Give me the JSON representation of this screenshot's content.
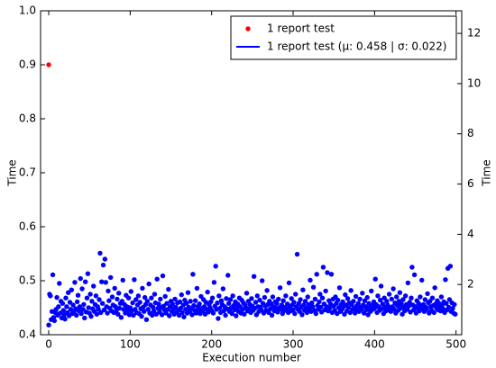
{
  "chart_data": {
    "type": "scatter",
    "xlabel": "Execution number",
    "ylabel": "Time",
    "y2label": "Time",
    "xlim": [
      -10,
      507
    ],
    "xticks": [
      0,
      100,
      200,
      300,
      400,
      500
    ],
    "ylim": [
      0.4,
      1.0
    ],
    "yticks": [
      0.4,
      0.5,
      0.6,
      0.7,
      0.8,
      0.9,
      {
        "value": 1.0,
        "label": "1.0"
      }
    ],
    "y2lim": [
      0,
      12.9
    ],
    "y2ticks": [
      2,
      4,
      6,
      8,
      10,
      12
    ],
    "legend": "upper right",
    "series": [
      {
        "name": "1 report test",
        "color": "#ff0000",
        "legend_marker": "dot",
        "values": [
          0.9
        ]
      },
      {
        "name": "1 report test (μ: 0.458 | σ: 0.022)",
        "color": "#0000ff",
        "legend_marker": "line",
        "values": [
          0.418,
          0.475,
          0.472,
          0.428,
          0.443,
          0.511,
          0.432,
          0.426,
          0.441,
          0.447,
          0.469,
          0.436,
          0.452,
          0.495,
          0.44,
          0.462,
          0.431,
          0.458,
          0.445,
          0.437,
          0.429,
          0.468,
          0.452,
          0.441,
          0.478,
          0.435,
          0.46,
          0.447,
          0.483,
          0.439,
          0.455,
          0.442,
          0.497,
          0.448,
          0.436,
          0.461,
          0.473,
          0.444,
          0.452,
          0.504,
          0.439,
          0.485,
          0.447,
          0.456,
          0.431,
          0.498,
          0.442,
          0.468,
          0.513,
          0.45,
          0.44,
          0.475,
          0.434,
          0.462,
          0.448,
          0.49,
          0.443,
          0.456,
          0.472,
          0.438,
          0.452,
          0.447,
          0.465,
          0.551,
          0.441,
          0.498,
          0.458,
          0.529,
          0.446,
          0.54,
          0.497,
          0.452,
          0.44,
          0.481,
          0.463,
          0.449,
          0.506,
          0.444,
          0.47,
          0.455,
          0.441,
          0.486,
          0.452,
          0.445,
          0.466,
          0.438,
          0.477,
          0.449,
          0.458,
          0.432,
          0.462,
          0.501,
          0.447,
          0.456,
          0.44,
          0.473,
          0.452,
          0.445,
          0.468,
          0.437,
          0.45,
          0.48,
          0.444,
          0.459,
          0.436,
          0.502,
          0.447,
          0.465,
          0.441,
          0.455,
          0.472,
          0.439,
          0.46,
          0.448,
          0.434,
          0.486,
          0.451,
          0.443,
          0.469,
          0.456,
          0.428,
          0.462,
          0.447,
          0.494,
          0.44,
          0.455,
          0.468,
          0.436,
          0.451,
          0.444,
          0.475,
          0.459,
          0.438,
          0.503,
          0.449,
          0.457,
          0.442,
          0.466,
          0.45,
          0.437,
          0.509,
          0.453,
          0.446,
          0.471,
          0.44,
          0.458,
          0.447,
          0.484,
          0.435,
          0.452,
          0.462,
          0.443,
          0.457,
          0.448,
          0.438,
          0.466,
          0.451,
          0.442,
          0.459,
          0.445,
          0.436,
          0.461,
          0.449,
          0.474,
          0.441,
          0.455,
          0.433,
          0.464,
          0.447,
          0.458,
          0.44,
          0.478,
          0.451,
          0.443,
          0.462,
          0.448,
          0.437,
          0.512,
          0.454,
          0.445,
          0.463,
          0.44,
          0.486,
          0.452,
          0.446,
          0.457,
          0.439,
          0.471,
          0.449,
          0.444,
          0.465,
          0.452,
          0.438,
          0.46,
          0.447,
          0.479,
          0.442,
          0.456,
          0.45,
          0.461,
          0.445,
          0.468,
          0.44,
          0.497,
          0.453,
          0.527,
          0.447,
          0.459,
          0.43,
          0.472,
          0.449,
          0.441,
          0.463,
          0.456,
          0.485,
          0.444,
          0.452,
          0.436,
          0.467,
          0.448,
          0.51,
          0.458,
          0.443,
          0.465,
          0.45,
          0.439,
          0.472,
          0.454,
          0.446,
          0.461,
          0.435,
          0.449,
          0.457,
          0.443,
          0.468,
          0.452,
          0.44,
          0.464,
          0.447,
          0.459,
          0.438,
          0.455,
          0.45,
          0.477,
          0.444,
          0.462,
          0.448,
          0.456,
          0.441,
          0.467,
          0.453,
          0.445,
          0.508,
          0.449,
          0.46,
          0.437,
          0.472,
          0.452,
          0.443,
          0.464,
          0.451,
          0.446,
          0.5,
          0.458,
          0.44,
          0.469,
          0.453,
          0.445,
          0.482,
          0.456,
          0.441,
          0.462,
          0.448,
          0.457,
          0.436,
          0.47,
          0.452,
          0.444,
          0.461,
          0.449,
          0.458,
          0.442,
          0.466,
          0.45,
          0.487,
          0.447,
          0.455,
          0.439,
          0.463,
          0.451,
          0.445,
          0.472,
          0.448,
          0.457,
          0.441,
          0.496,
          0.452,
          0.444,
          0.467,
          0.455,
          0.446,
          0.46,
          0.439,
          0.475,
          0.452,
          0.549,
          0.447,
          0.458,
          0.443,
          0.465,
          0.451,
          0.437,
          0.483,
          0.455,
          0.445,
          0.462,
          0.449,
          0.441,
          0.47,
          0.456,
          0.448,
          0.501,
          0.443,
          0.459,
          0.452,
          0.488,
          0.445,
          0.466,
          0.439,
          0.512,
          0.454,
          0.447,
          0.461,
          0.475,
          0.451,
          0.442,
          0.468,
          0.525,
          0.457,
          0.446,
          0.481,
          0.452,
          0.515,
          0.444,
          0.463,
          0.449,
          0.457,
          0.512,
          0.441,
          0.466,
          0.453,
          0.445,
          0.47,
          0.458,
          0.439,
          0.464,
          0.45,
          0.487,
          0.443,
          0.456,
          0.447,
          0.461,
          0.452,
          0.438,
          0.474,
          0.455,
          0.444,
          0.467,
          0.45,
          0.459,
          0.441,
          0.482,
          0.456,
          0.447,
          0.462,
          0.449,
          0.44,
          0.471,
          0.453,
          0.445,
          0.458,
          0.443,
          0.466,
          0.451,
          0.447,
          0.477,
          0.455,
          0.44,
          0.463,
          0.452,
          0.446,
          0.469,
          0.437,
          0.458,
          0.45,
          0.443,
          0.481,
          0.454,
          0.447,
          0.461,
          0.449,
          0.503,
          0.456,
          0.441,
          0.472,
          0.452,
          0.445,
          0.464,
          0.49,
          0.448,
          0.457,
          0.439,
          0.468,
          0.451,
          0.444,
          0.462,
          0.455,
          0.446,
          0.475,
          0.45,
          0.443,
          0.466,
          0.452,
          0.485,
          0.447,
          0.459,
          0.44,
          0.47,
          0.454,
          0.445,
          0.462,
          0.478,
          0.449,
          0.457,
          0.438,
          0.465,
          0.451,
          0.444,
          0.472,
          0.456,
          0.447,
          0.496,
          0.453,
          0.46,
          0.442,
          0.468,
          0.525,
          0.455,
          0.446,
          0.511,
          0.452,
          0.44,
          0.463,
          0.449,
          0.458,
          0.444,
          0.47,
          0.454,
          0.501,
          0.448,
          0.456,
          0.443,
          0.465,
          0.451,
          0.447,
          0.476,
          0.459,
          0.44,
          0.462,
          0.452,
          0.445,
          0.468,
          0.454,
          0.441,
          0.487,
          0.457,
          0.449,
          0.463,
          0.446,
          0.458,
          0.452,
          0.444,
          0.47,
          0.455,
          0.448,
          0.461,
          0.441,
          0.502,
          0.458,
          0.446,
          0.523,
          0.451,
          0.465,
          0.527,
          0.443,
          0.459,
          0.449,
          0.44,
          0.456,
          0.438
        ]
      }
    ]
  }
}
